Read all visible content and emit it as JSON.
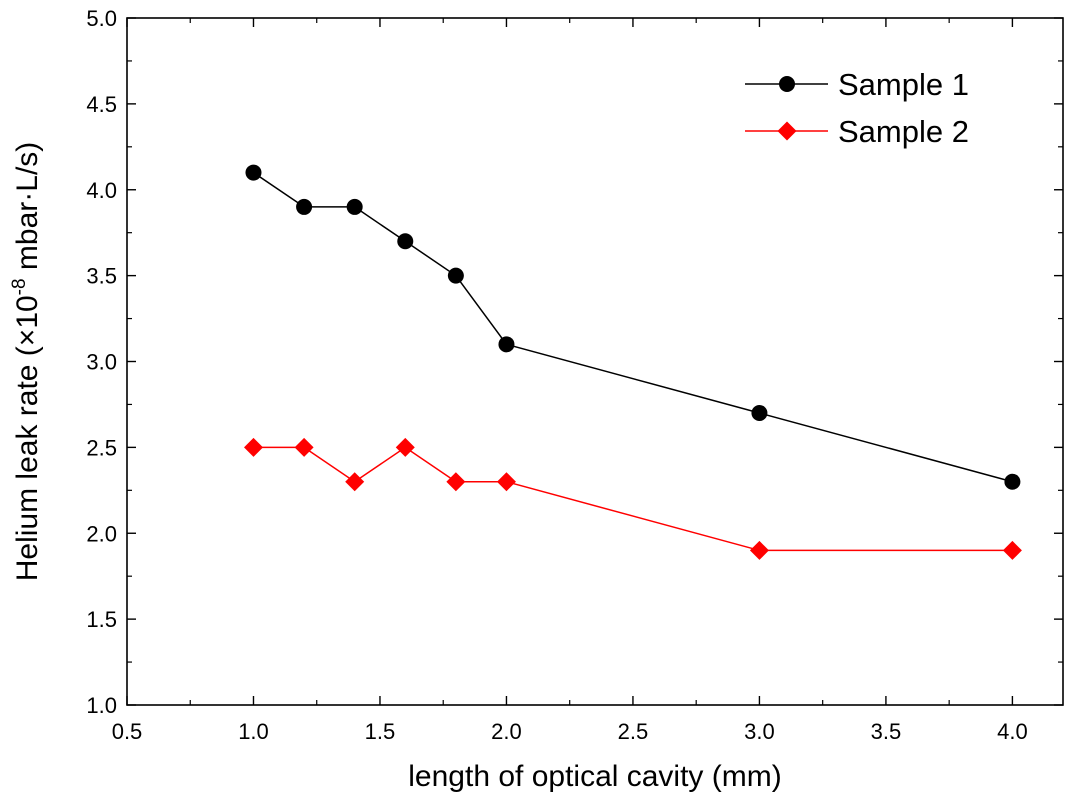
{
  "chart_data": {
    "type": "line",
    "xlabel": "length of optical cavity (mm)",
    "ylabel_main": "Helium leak rate (×10",
    "ylabel_exp": "-8",
    "ylabel_tail": " mbar·L/s)",
    "xlim": [
      0.5,
      4.2
    ],
    "ylim": [
      1.0,
      5.0
    ],
    "xticks": [
      0.5,
      1.0,
      1.5,
      2.0,
      2.5,
      3.0,
      3.5,
      4.0
    ],
    "yticks": [
      1.0,
      1.5,
      2.0,
      2.5,
      3.0,
      3.5,
      4.0,
      4.5,
      5.0
    ],
    "grid": false,
    "legend_position": "top-right",
    "series": [
      {
        "name": "Sample 1",
        "marker": "circle",
        "color": "#000000",
        "x": [
          1.0,
          1.2,
          1.4,
          1.6,
          1.8,
          2.0,
          3.0,
          4.0
        ],
        "y": [
          4.1,
          3.9,
          3.9,
          3.7,
          3.5,
          3.1,
          2.7,
          2.3
        ]
      },
      {
        "name": "Sample 2",
        "marker": "diamond",
        "color": "#ff0000",
        "x": [
          1.0,
          1.2,
          1.4,
          1.6,
          1.8,
          2.0,
          3.0,
          4.0
        ],
        "y": [
          2.5,
          2.5,
          2.3,
          2.5,
          2.3,
          2.3,
          1.9,
          1.9
        ]
      }
    ]
  }
}
